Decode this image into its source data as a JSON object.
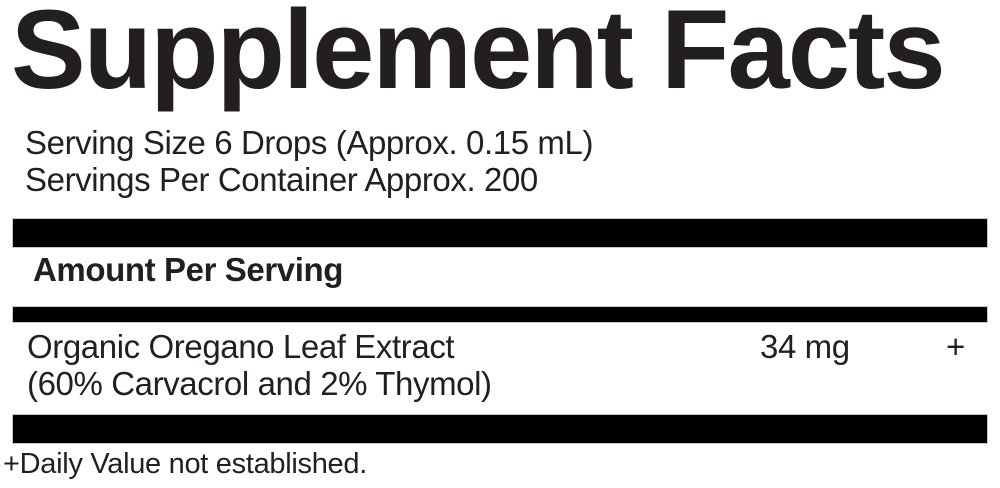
{
  "label": {
    "title": "Supplement Facts",
    "serving": {
      "serving_size": "Serving Size 6 Drops (Approx. 0.15 mL)",
      "servings_per_container": "Servings Per Container Approx. 200"
    },
    "column_header": "Amount Per Serving",
    "rows": [
      {
        "name": "Organic Oregano Leaf Extract",
        "detail": "(60% Carvacrol and 2% Thymol)",
        "amount": "34 mg",
        "daily_value": "+"
      }
    ],
    "footnote": "+Daily Value not established."
  },
  "colors": {
    "text": "#231f20",
    "bar": "#000000",
    "background": "#ffffff"
  }
}
